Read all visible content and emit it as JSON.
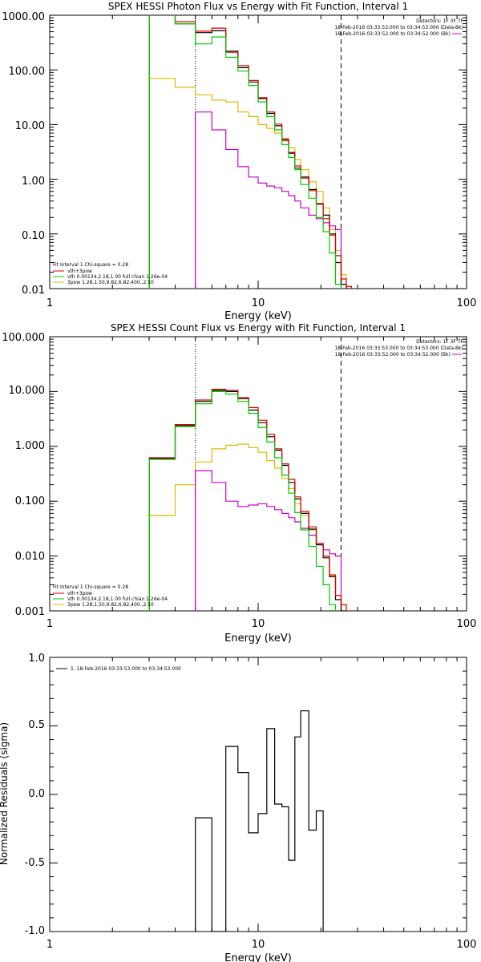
{
  "chart_data": [
    {
      "type": "line",
      "title": "SPEX HESSI Photon Flux vs Energy with Fit Function, Interval 1",
      "xlabel": "Energy (keV)",
      "ylabel": "",
      "xscale": "log",
      "yscale": "log",
      "xlim": [
        1,
        100
      ],
      "ylim": [
        0.01,
        1000
      ],
      "x_tick_labels": [
        "1",
        "10",
        "100"
      ],
      "y_tick_labels": [
        "0.01",
        "0.10",
        "1.00",
        "10.00",
        "100.00",
        "1000.00"
      ],
      "header_text": [
        "Detectors: 1F 3F 7F",
        "18-Feb-2016 03:33:53.000 to 03:34:53.000 (Data-Bk)",
        "18-Feb-2016 03:33:52.000 to 03:34:52.000 (Bk)"
      ],
      "legend_placement": "bottom-left",
      "legend_text": [
        "Fit Interval 1    Chi-square = 0.28",
        "vth+3pow",
        "vth 0.00134,2.18,1.00  full chian 1.26e-04",
        "3pow 1.28,1.50,9.82,6.82,400.,2.50"
      ],
      "fit_range_lines": [
        5.0,
        25.0
      ],
      "bin_edges": [
        3.0,
        4.0,
        5.0,
        6.0,
        7.0,
        8.0,
        9.0,
        10.0,
        11.0,
        12.0,
        13.0,
        14.0,
        15.0,
        16.0,
        17.5,
        19.0,
        20.5,
        22.0,
        23.5,
        25.0,
        26.5,
        28.0
      ],
      "series": [
        {
          "name": "Data-Bk",
          "color": "#000000",
          "values": [
            1200,
            700,
            480,
            520,
            220,
            110,
            60,
            30,
            16,
            9.5,
            5.2,
            3.0,
            1.6,
            1.1,
            0.65,
            0.35,
            0.22,
            0.1,
            0.03,
            0.012,
            null
          ]
        },
        {
          "name": "vth+3pow",
          "color": "#dd0000",
          "values": [
            1300,
            760,
            510,
            580,
            210,
            120,
            64,
            31,
            17,
            10.2,
            5.5,
            3.1,
            1.75,
            1.05,
            0.62,
            0.36,
            0.19,
            0.095,
            0.04,
            0.015,
            0.011
          ]
        },
        {
          "name": "vth",
          "color": "#00cc00",
          "values": [
            1200,
            700,
            300,
            400,
            170,
            95,
            52,
            26,
            14,
            8.0,
            4.3,
            2.5,
            1.5,
            0.8,
            0.45,
            0.2,
            0.11,
            0.045,
            0.012,
            null,
            null
          ]
        },
        {
          "name": "3pow",
          "color": "#ddbb00",
          "values": [
            70,
            48,
            35,
            28,
            26,
            17,
            14,
            10,
            8.5,
            7,
            5,
            3.8,
            2.3,
            1.5,
            0.9,
            0.6,
            0.3,
            0.12,
            0.05,
            0.018,
            0.011
          ]
        },
        {
          "name": "Bk",
          "color": "#cc00cc",
          "values": [
            null,
            null,
            17,
            8,
            3.5,
            1.7,
            1.1,
            0.85,
            0.75,
            0.7,
            0.6,
            0.5,
            0.4,
            0.3,
            0.22,
            0.19,
            0.16,
            0.14,
            0.12,
            null,
            null
          ]
        }
      ]
    },
    {
      "type": "line",
      "title": "SPEX HESSI Count Flux vs Energy with Fit Function, Interval 1",
      "xlabel": "Energy (keV)",
      "ylabel": "",
      "xscale": "log",
      "yscale": "log",
      "xlim": [
        1,
        100
      ],
      "ylim": [
        0.001,
        100
      ],
      "x_tick_labels": [
        "1",
        "10",
        "100"
      ],
      "y_tick_labels": [
        "0.001",
        "0.010",
        "0.100",
        "1.000",
        "10.000",
        "100.000"
      ],
      "header_text": [
        "Detectors: 1F 3F 7F",
        "18-Feb-2016 03:33:53.000 to 03:34:53.000 (Data-Bk)",
        "18-Feb-2016 03:33:52.000 to 03:34:52.000 (Bk)"
      ],
      "legend_placement": "bottom-left",
      "legend_text": [
        "Fit Interval 1    Chi-square = 0.28",
        "vth+3pow",
        "vth 0.00134,2.18,1.00  full chian 1.26e-04",
        "3pow 1.28,1.50,9.82,6.82,400.,2.50"
      ],
      "fit_range_lines": [
        5.0,
        25.0
      ],
      "bin_edges": [
        3.0,
        4.0,
        5.0,
        6.0,
        7.0,
        8.0,
        9.0,
        10.0,
        11.0,
        12.0,
        13.0,
        14.0,
        15.0,
        16.0,
        17.5,
        19.0,
        20.5,
        22.0,
        23.5,
        25.0,
        26.5,
        28.0
      ],
      "series": [
        {
          "name": "Data-Bk",
          "color": "#000000",
          "values": [
            0.6,
            2.4,
            6.6,
            10.5,
            10.0,
            7.4,
            4.6,
            2.7,
            1.5,
            0.85,
            0.45,
            0.22,
            0.11,
            0.06,
            0.031,
            0.016,
            0.0093,
            0.0042,
            0.0016,
            0.001,
            null
          ]
        },
        {
          "name": "vth+3pow",
          "color": "#dd0000",
          "values": [
            0.62,
            2.5,
            7.0,
            11.0,
            10.5,
            7.8,
            5.1,
            3.0,
            1.65,
            0.9,
            0.48,
            0.25,
            0.12,
            0.065,
            0.034,
            0.017,
            0.01,
            0.0045,
            0.0019,
            0.0013,
            0.001
          ]
        },
        {
          "name": "vth",
          "color": "#00cc00",
          "values": [
            0.58,
            2.3,
            6.0,
            10.0,
            9.0,
            6.6,
            4.0,
            2.2,
            1.2,
            0.62,
            0.3,
            0.14,
            0.062,
            0.03,
            0.015,
            0.0065,
            0.003,
            0.0013,
            null,
            null,
            null
          ]
        },
        {
          "name": "3pow",
          "color": "#ddbb00",
          "values": [
            0.055,
            0.2,
            0.52,
            0.9,
            1.05,
            1.1,
            0.95,
            0.78,
            0.55,
            0.4,
            0.26,
            0.17,
            0.09,
            0.055,
            0.03,
            0.017,
            0.01,
            0.0046,
            0.0019,
            0.0013,
            0.001
          ]
        },
        {
          "name": "Bk",
          "color": "#cc00cc",
          "values": [
            null,
            null,
            0.36,
            0.22,
            0.1,
            0.08,
            0.085,
            0.09,
            0.08,
            0.07,
            0.06,
            0.05,
            0.042,
            0.032,
            0.024,
            0.017,
            0.013,
            0.011,
            0.01,
            null,
            null
          ]
        }
      ]
    },
    {
      "type": "line",
      "title": "",
      "xlabel": "Energy (keV)",
      "ylabel": "Normalized Residuals (sigma)",
      "xscale": "log",
      "yscale": "linear",
      "xlim": [
        1,
        100
      ],
      "ylim": [
        -1.0,
        1.0
      ],
      "x_tick_labels": [
        "1",
        "10",
        "100"
      ],
      "y_tick_labels": [
        "-1.0",
        "-0.5",
        "0.0",
        "0.5",
        "1.0"
      ],
      "legend_placement": "top-left",
      "legend_text": [
        "1. 18-Feb-2016 03:33:53.000 to 03:34:53.000"
      ],
      "bin_edges": [
        5.0,
        6.0,
        7.0,
        8.0,
        9.0,
        10.0,
        11.0,
        12.0,
        13.0,
        14.0,
        15.0,
        16.0,
        17.5,
        19.0,
        20.5,
        22.0,
        23.5,
        25.0
      ],
      "series": [
        {
          "name": "1. 18-Feb-2016 03:33:53.000 to 03:34:53.000",
          "color": "#000000",
          "values": [
            -0.17,
            -1.0,
            0.35,
            0.16,
            -0.28,
            -0.14,
            0.48,
            -0.07,
            -0.09,
            -0.48,
            0.42,
            0.61,
            -0.26,
            -0.12,
            null,
            null,
            null
          ]
        }
      ]
    }
  ]
}
